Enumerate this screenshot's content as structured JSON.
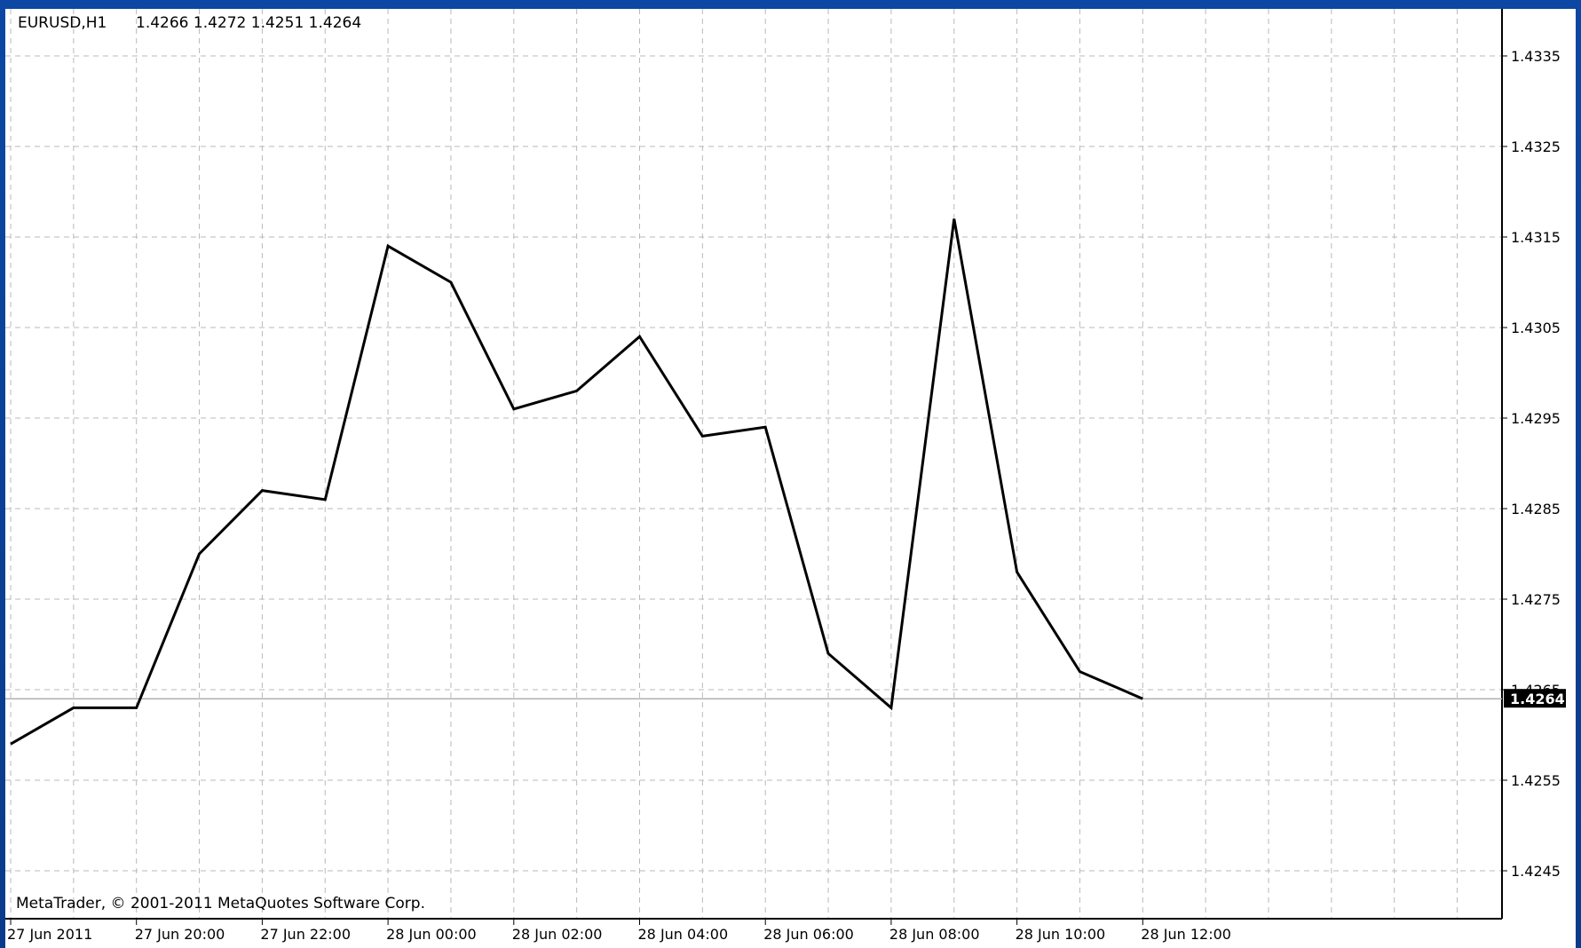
{
  "chart_info": {
    "symbol_label": "EURUSD,H1",
    "ohlc_text": "1.4266 1.4272 1.4251 1.4264"
  },
  "footer": {
    "copyright": "MetaTrader, © 2001-2011 MetaQuotes Software Corp."
  },
  "colors": {
    "background": "#ffffff",
    "line": "#000000",
    "grid": "#b9b9b9",
    "current_price_bg": "#000000",
    "current_price_line": "#b0b0b0",
    "frame": "#0b47a3"
  },
  "chart_data": {
    "type": "line",
    "title": "EURUSD,H1",
    "ylim": [
      1.424,
      1.434
    ],
    "grid": true,
    "y_ticks": [
      "1.4335",
      "1.4325",
      "1.4315",
      "1.4305",
      "1.4295",
      "1.4285",
      "1.4275",
      "1.4265",
      "1.4255",
      "1.4245"
    ],
    "x_ticks": [
      "27 Jun 2011",
      "27 Jun 20:00",
      "27 Jun 22:00",
      "28 Jun 00:00",
      "28 Jun 02:00",
      "28 Jun 04:00",
      "28 Jun 06:00",
      "28 Jun 08:00",
      "28 Jun 10:00",
      "28 Jun 12:00"
    ],
    "x": [
      "27 Jun 18:00",
      "27 Jun 19:00",
      "27 Jun 20:00",
      "27 Jun 21:00",
      "27 Jun 22:00",
      "27 Jun 23:00",
      "28 Jun 00:00",
      "28 Jun 01:00",
      "28 Jun 02:00",
      "28 Jun 03:00",
      "28 Jun 04:00",
      "28 Jun 05:00",
      "28 Jun 06:00",
      "28 Jun 07:00",
      "28 Jun 08:00",
      "28 Jun 09:00",
      "28 Jun 10:00",
      "28 Jun 11:00",
      "28 Jun 12:00"
    ],
    "series": [
      {
        "values": [
          1.4259,
          1.4263,
          1.4263,
          1.428,
          1.4287,
          1.4286,
          1.4314,
          1.431,
          1.4296,
          1.4298,
          1.4304,
          1.4293,
          1.4294,
          1.4269,
          1.4263,
          1.4317,
          1.4278,
          1.4267,
          1.4264
        ]
      }
    ],
    "current_price": "1.4264"
  }
}
